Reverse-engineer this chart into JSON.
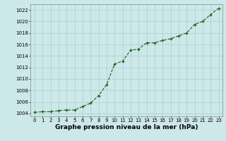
{
  "x": [
    0,
    1,
    2,
    3,
    4,
    5,
    6,
    7,
    8,
    9,
    10,
    11,
    12,
    13,
    14,
    15,
    16,
    17,
    18,
    19,
    20,
    21,
    22,
    23
  ],
  "y": [
    1004.2,
    1004.3,
    1004.3,
    1004.5,
    1004.6,
    1004.6,
    1005.2,
    1005.8,
    1007.1,
    1009.0,
    1012.6,
    1013.1,
    1015.0,
    1015.2,
    1016.3,
    1016.3,
    1016.7,
    1017.0,
    1017.5,
    1018.0,
    1019.5,
    1020.0,
    1021.2,
    1022.3
  ],
  "ylim_min": 1003.5,
  "ylim_max": 1023.0,
  "xlim_min": -0.5,
  "xlim_max": 23.5,
  "yticks": [
    1004,
    1006,
    1008,
    1010,
    1012,
    1014,
    1016,
    1018,
    1020,
    1022
  ],
  "xticks": [
    0,
    1,
    2,
    3,
    4,
    5,
    6,
    7,
    8,
    9,
    10,
    11,
    12,
    13,
    14,
    15,
    16,
    17,
    18,
    19,
    20,
    21,
    22,
    23
  ],
  "xlabel": "Graphe pression niveau de la mer (hPa)",
  "line_color": "#1a5c1a",
  "marker": "+",
  "marker_color": "#1a5c1a",
  "bg_color": "#cce8e8",
  "grid_color": "#aacfcf",
  "tick_fontsize": 5.0,
  "xlabel_fontsize": 6.5,
  "line_width": 0.8,
  "marker_size": 3.5,
  "marker_edge_width": 0.9
}
